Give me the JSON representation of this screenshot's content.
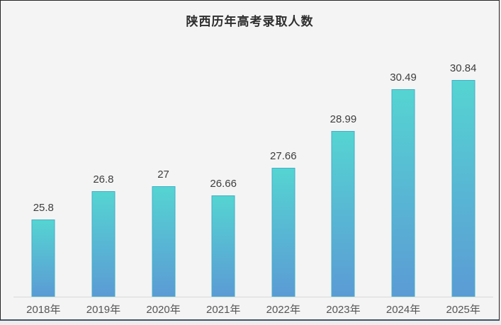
{
  "window": {
    "background": "#f4f4f4",
    "frame_border": "#262626",
    "frame_bottom_border": "#44546a"
  },
  "chart_data": {
    "type": "bar",
    "title": "陕西历年高考录取人数",
    "categories": [
      "2018年",
      "2019年",
      "2020年",
      "2021年",
      "2022年",
      "2023年",
      "2024年",
      "2025年"
    ],
    "values": [
      25.8,
      26.8,
      27,
      26.66,
      27.66,
      28.99,
      30.49,
      30.84
    ],
    "data_labels": [
      "25.8",
      "26.8",
      "27",
      "26.66",
      "27.66",
      "28.99",
      "30.49",
      "30.84"
    ],
    "xlabel": "",
    "ylabel": "",
    "ylim": [
      23,
      33
    ],
    "grid": false,
    "legend": null,
    "axis_line_visible": true,
    "colors": {
      "bar_gradient_top": "#55d4d2",
      "bar_gradient_bottom": "#5b9bd5",
      "bar_border": "#3fb0c9",
      "axis_line": "#d9d9d9",
      "title_text": "#2e2e2e",
      "value_label_text": "#3d3d3d",
      "category_label_text": "#555555"
    }
  }
}
